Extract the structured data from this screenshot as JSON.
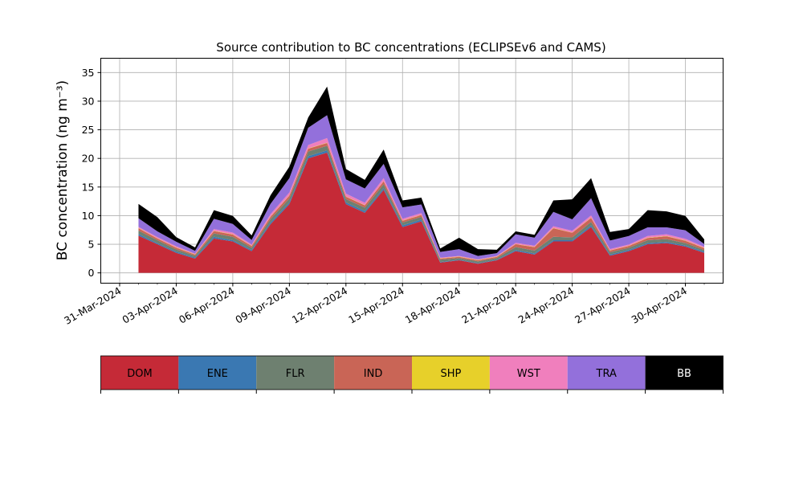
{
  "chart_data": {
    "type": "area",
    "stacked": true,
    "title": "Source contribution to BC concentrations (ECLIPSEv6 and CAMS)",
    "xlabel": "",
    "ylabel": "BC concentration (ng m⁻³)",
    "ylim": [
      -1.8,
      37.5
    ],
    "xlim": [
      "2024-03-30",
      "2024-05-02"
    ],
    "grid": true,
    "legend_position": "bottom",
    "x_tick_labels": [
      "31-Mar-2024",
      "03-Apr-2024",
      "06-Apr-2024",
      "09-Apr-2024",
      "12-Apr-2024",
      "15-Apr-2024",
      "18-Apr-2024",
      "21-Apr-2024",
      "24-Apr-2024",
      "27-Apr-2024",
      "30-Apr-2024"
    ],
    "y_ticks": [
      0,
      5,
      10,
      15,
      20,
      25,
      30,
      35
    ],
    "x": [
      "2024-04-01",
      "2024-04-02",
      "2024-04-03",
      "2024-04-04",
      "2024-04-05",
      "2024-04-06",
      "2024-04-07",
      "2024-04-08",
      "2024-04-09",
      "2024-04-10",
      "2024-04-11",
      "2024-04-12",
      "2024-04-13",
      "2024-04-14",
      "2024-04-15",
      "2024-04-16",
      "2024-04-17",
      "2024-04-18",
      "2024-04-19",
      "2024-04-20",
      "2024-04-21",
      "2024-04-22",
      "2024-04-23",
      "2024-04-24",
      "2024-04-25",
      "2024-04-26",
      "2024-04-27",
      "2024-04-28",
      "2024-04-29",
      "2024-04-30",
      "2024-05-01"
    ],
    "series": [
      {
        "name": "DOM",
        "color": "#c52a37",
        "values": [
          6.5,
          5,
          3.5,
          2.5,
          6,
          5.5,
          3.8,
          8.5,
          12,
          20,
          21,
          12,
          10.5,
          14.5,
          8,
          9,
          1.8,
          2.2,
          1.6,
          2.2,
          3.8,
          3.2,
          5.5,
          5.5,
          8,
          3,
          3.8,
          5,
          5.2,
          4.6,
          3.5
        ]
      },
      {
        "name": "ENE",
        "color": "#3a78b2",
        "values": [
          0.3,
          0.2,
          0.2,
          0.2,
          0.3,
          0.2,
          0.2,
          0.3,
          0.3,
          0.4,
          0.4,
          0.3,
          0.3,
          0.3,
          0.3,
          0.3,
          0.1,
          0.1,
          0.1,
          0.1,
          0.2,
          0.2,
          0.2,
          0.2,
          0.3,
          0.2,
          0.2,
          0.2,
          0.2,
          0.2,
          0.2
        ]
      },
      {
        "name": "FLR",
        "color": "#6e8070",
        "values": [
          0.6,
          0.5,
          0.4,
          0.3,
          0.6,
          0.6,
          0.4,
          0.6,
          0.7,
          0.8,
          0.8,
          0.6,
          0.6,
          0.7,
          0.5,
          0.5,
          0.4,
          0.3,
          0.3,
          0.3,
          0.5,
          0.5,
          0.6,
          0.5,
          0.6,
          0.4,
          0.4,
          0.5,
          0.5,
          0.4,
          0.3
        ]
      },
      {
        "name": "IND",
        "color": "#c96556",
        "values": [
          0.4,
          0.3,
          0.3,
          0.2,
          0.4,
          0.4,
          0.3,
          0.4,
          0.5,
          0.5,
          0.5,
          0.4,
          0.4,
          0.5,
          0.3,
          0.3,
          0.2,
          0.2,
          0.2,
          0.2,
          0.5,
          0.6,
          1.5,
          0.8,
          0.7,
          0.3,
          0.3,
          0.4,
          0.5,
          0.4,
          0.3
        ]
      },
      {
        "name": "SHP",
        "color": "#e7d02a",
        "values": [
          0.05,
          0.05,
          0.05,
          0.05,
          0.05,
          0.05,
          0.05,
          0.05,
          0.05,
          0.05,
          0.05,
          0.05,
          0.05,
          0.05,
          0.05,
          0.05,
          0.05,
          0.05,
          0.05,
          0.05,
          0.05,
          0.05,
          0.05,
          0.05,
          0.05,
          0.05,
          0.05,
          0.05,
          0.05,
          0.05,
          0.05
        ]
      },
      {
        "name": "WST",
        "color": "#f07fbd",
        "values": [
          0.2,
          0.2,
          0.2,
          0.1,
          0.3,
          0.3,
          0.2,
          0.4,
          0.5,
          0.6,
          0.8,
          0.5,
          0.4,
          0.5,
          0.3,
          0.3,
          0.1,
          0.1,
          0.1,
          0.1,
          0.2,
          0.2,
          0.3,
          0.3,
          0.4,
          0.2,
          0.2,
          0.3,
          0.3,
          0.3,
          0.2
        ]
      },
      {
        "name": "TRA",
        "color": "#9370db",
        "values": [
          1.5,
          1,
          0.8,
          0.5,
          1.8,
          1.5,
          0.8,
          1.8,
          2.5,
          3,
          4,
          2.5,
          2.5,
          2.5,
          2,
          1.5,
          1,
          1.2,
          0.6,
          0.5,
          1.5,
          1.4,
          2.5,
          2,
          3,
          1.5,
          1.5,
          1.5,
          1.2,
          1.5,
          0.5
        ]
      },
      {
        "name": "BB",
        "color": "#000000",
        "values": [
          2.5,
          2.5,
          0.8,
          0.6,
          1.5,
          1.4,
          0.8,
          1.5,
          2,
          1.8,
          5,
          1.8,
          1.5,
          2.5,
          1.2,
          1.2,
          0.6,
          2,
          1.2,
          0.6,
          0.5,
          0.5,
          2,
          3.5,
          3.5,
          1.5,
          1.2,
          3,
          2.8,
          2.5,
          0.8
        ]
      }
    ]
  }
}
